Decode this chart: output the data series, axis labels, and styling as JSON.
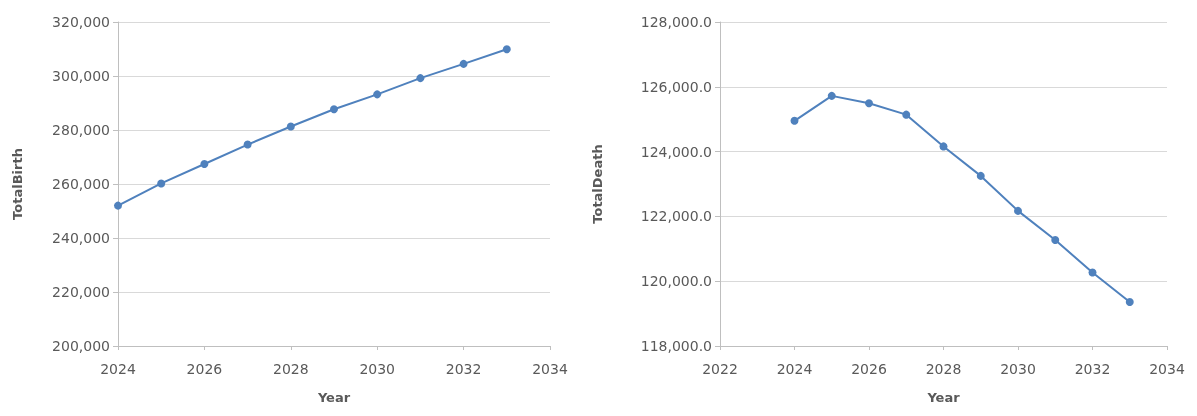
{
  "chart_data": [
    {
      "type": "line",
      "xlabel": "Year",
      "ylabel": "TotalBirth",
      "x": [
        2024,
        2025,
        2026,
        2027,
        2028,
        2029,
        2030,
        2031,
        2032,
        2033
      ],
      "series": [
        {
          "color": "#4f81bd",
          "values": [
            252000,
            260200,
            267400,
            274600,
            281300,
            287700,
            293200,
            299200,
            304500,
            309900
          ]
        }
      ],
      "xlim": [
        2024,
        2034
      ],
      "xticks": [
        2024,
        2026,
        2028,
        2030,
        2032,
        2034
      ],
      "ylim": [
        200000,
        320000
      ],
      "yticks": [
        {
          "value": 200000,
          "label": "200,000"
        },
        {
          "value": 220000,
          "label": "220,000"
        },
        {
          "value": 240000,
          "label": "240,000"
        },
        {
          "value": 260000,
          "label": "260,000"
        },
        {
          "value": 280000,
          "label": "280,000"
        },
        {
          "value": 300000,
          "label": "300,000"
        },
        {
          "value": 320000,
          "label": "320,000"
        }
      ],
      "grid": "y",
      "legend": false,
      "marker": "circle",
      "line_style": "solid"
    },
    {
      "type": "line",
      "xlabel": "Year",
      "ylabel": "TotalDeath",
      "x": [
        2024,
        2025,
        2026,
        2027,
        2028,
        2029,
        2030,
        2031,
        2032,
        2033
      ],
      "series": [
        {
          "color": "#4f81bd",
          "values": [
            124950,
            125720,
            125490,
            125140,
            124160,
            123250,
            122170,
            121270,
            120270,
            119360
          ]
        }
      ],
      "xlim": [
        2022,
        2034
      ],
      "xticks": [
        2022,
        2024,
        2026,
        2028,
        2030,
        2032,
        2034
      ],
      "ylim": [
        118000,
        128000
      ],
      "yticks": [
        {
          "value": 118000,
          "label": "118,000.0"
        },
        {
          "value": 120000,
          "label": "120,000.0"
        },
        {
          "value": 122000,
          "label": "122,000.0"
        },
        {
          "value": 124000,
          "label": "124,000.0"
        },
        {
          "value": 126000,
          "label": "126,000.0"
        },
        {
          "value": 128000,
          "label": "128,000.0"
        }
      ],
      "grid": "y",
      "legend": false,
      "marker": "circle",
      "line_style": "solid"
    }
  ]
}
